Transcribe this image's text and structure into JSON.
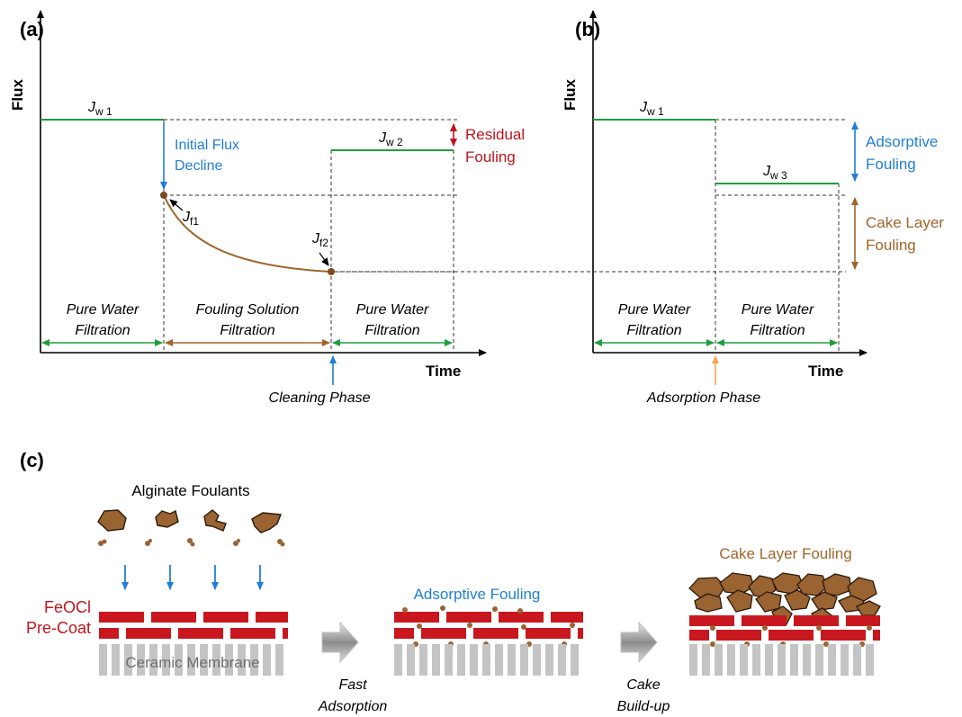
{
  "panel_a": {
    "label": "(a)",
    "y_axis": "Flux",
    "x_axis": "Time",
    "jw1": {
      "main": "J",
      "sub": "w 1"
    },
    "jw2": {
      "main": "J",
      "sub": "w 2"
    },
    "jf1": {
      "main": "J",
      "sub": "f1"
    },
    "jf2": {
      "main": "J",
      "sub": "f2"
    },
    "initial_decline": [
      "Initial Flux",
      "Decline"
    ],
    "residual": [
      "Residual",
      "Fouling"
    ],
    "phases": [
      [
        "Pure Water",
        "Filtration"
      ],
      [
        "Fouling Solution",
        "Filtration"
      ],
      [
        "Pure Water",
        "Filtration"
      ]
    ],
    "event": "Cleaning Phase"
  },
  "panel_b": {
    "label": "(b)",
    "y_axis": "Flux",
    "x_axis": "Time",
    "jw1": {
      "main": "J",
      "sub": "w 1"
    },
    "jw3": {
      "main": "J",
      "sub": "w 3"
    },
    "adsorptive": [
      "Adsorptive",
      "Fouling"
    ],
    "cake": [
      "Cake Layer",
      "Fouling"
    ],
    "phases": [
      [
        "Pure Water",
        "Filtration"
      ],
      [
        "Pure Water",
        "Filtration"
      ]
    ],
    "event": "Adsorption Phase"
  },
  "panel_c": {
    "label": "(c)",
    "foulants": "Alginate Foulants",
    "precoat": [
      "FeOCl",
      "Pre-Coat"
    ],
    "membrane": "Ceramic Membrane",
    "adsorptive": "Adsorptive Fouling",
    "cake": "Cake Layer Fouling",
    "step1": [
      "Fast",
      "Adsorption"
    ],
    "step2": [
      "Cake",
      "Build-up"
    ]
  },
  "colors": {
    "green": "#1e9e3e",
    "blue": "#1f7fd8",
    "red": "#c0141c",
    "brown": "#a0642a",
    "orange": "#f5a64a",
    "brick": "#c8171e",
    "foulant": "#9a6332",
    "gray": "#c4c4c4"
  }
}
